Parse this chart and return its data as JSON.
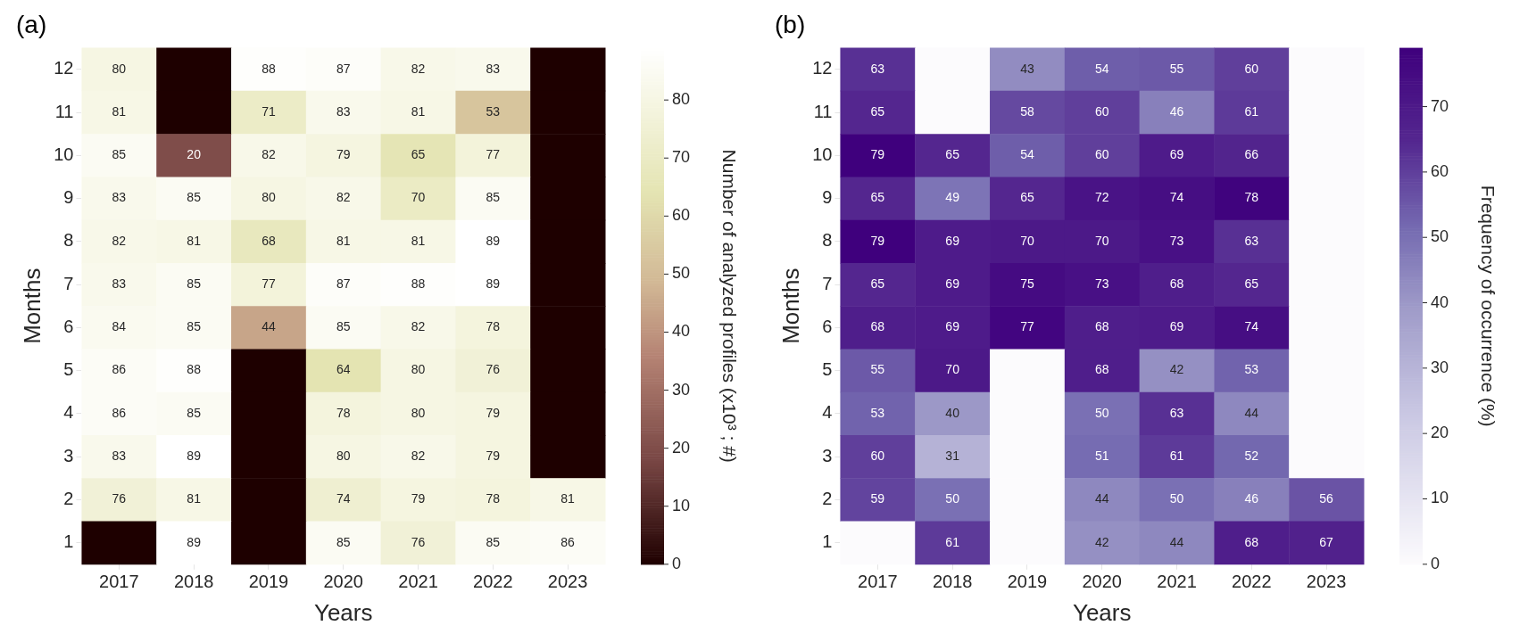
{
  "chart_data": [
    {
      "type": "heatmap",
      "title": "(a)",
      "xlabel": "Years",
      "ylabel": "Months",
      "clabel": "Number of analyzed profiles (x10³ ; #)",
      "categories": [
        "2017",
        "2018",
        "2019",
        "2020",
        "2021",
        "2022",
        "2023"
      ],
      "y_categories": [
        "12",
        "11",
        "10",
        "9",
        "8",
        "7",
        "6",
        "5",
        "4",
        "3",
        "2",
        "1"
      ],
      "cells": [
        [
          80,
          0,
          88,
          87,
          82,
          83,
          0
        ],
        [
          81,
          0,
          71,
          83,
          81,
          53,
          0
        ],
        [
          85,
          20,
          82,
          79,
          65,
          77,
          0
        ],
        [
          83,
          85,
          80,
          82,
          70,
          85,
          0
        ],
        [
          82,
          81,
          68,
          81,
          81,
          89,
          0
        ],
        [
          83,
          85,
          77,
          87,
          88,
          89,
          0
        ],
        [
          84,
          85,
          44,
          85,
          82,
          78,
          0
        ],
        [
          86,
          88,
          0,
          64,
          80,
          76,
          0
        ],
        [
          86,
          85,
          0,
          78,
          80,
          79,
          0
        ],
        [
          83,
          89,
          0,
          80,
          82,
          79,
          0
        ],
        [
          76,
          81,
          0,
          74,
          79,
          78,
          81
        ],
        [
          0,
          89,
          0,
          85,
          76,
          85,
          86
        ]
      ],
      "cell_labels": [
        [
          "80",
          null,
          "88",
          "87",
          "82",
          "83",
          null
        ],
        [
          "81",
          null,
          "71",
          "83",
          "81",
          "53",
          null
        ],
        [
          "85",
          "20",
          "82",
          "79",
          "65",
          "77",
          null
        ],
        [
          "83",
          "85",
          "80",
          "82",
          "70",
          "85",
          null
        ],
        [
          "82",
          "81",
          "68",
          "81",
          "81",
          "89",
          null
        ],
        [
          "83",
          "85",
          "77",
          "87",
          "88",
          "89",
          null
        ],
        [
          "84",
          "85",
          "44",
          "85",
          "82",
          "78",
          null
        ],
        [
          "86",
          "88",
          null,
          "64",
          "80",
          "76",
          null
        ],
        [
          "86",
          "85",
          null,
          "78",
          "80",
          "79",
          null
        ],
        [
          "83",
          "89",
          null,
          "80",
          "82",
          "79",
          null
        ],
        [
          "76",
          "81",
          null,
          "74",
          "79",
          "78",
          "81"
        ],
        [
          null,
          "89",
          null,
          "85",
          "76",
          "85",
          "86"
        ]
      ],
      "clim": [
        0,
        89
      ],
      "cticks": [
        0,
        10,
        20,
        30,
        40,
        50,
        60,
        70,
        80
      ]
    },
    {
      "type": "heatmap",
      "title": "(b)",
      "xlabel": "Years",
      "ylabel": "Months",
      "clabel": "Frequency of occurrence (%)",
      "categories": [
        "2017",
        "2018",
        "2019",
        "2020",
        "2021",
        "2022",
        "2023"
      ],
      "y_categories": [
        "12",
        "11",
        "10",
        "9",
        "8",
        "7",
        "6",
        "5",
        "4",
        "3",
        "2",
        "1"
      ],
      "cells": [
        [
          63,
          0,
          43,
          54,
          55,
          60,
          0
        ],
        [
          65,
          0,
          58,
          60,
          46,
          61,
          0
        ],
        [
          79,
          65,
          54,
          60,
          69,
          66,
          0
        ],
        [
          65,
          49,
          65,
          72,
          74,
          78,
          0
        ],
        [
          79,
          69,
          70,
          70,
          73,
          63,
          0
        ],
        [
          65,
          69,
          75,
          73,
          68,
          65,
          0
        ],
        [
          68,
          69,
          77,
          68,
          69,
          74,
          0
        ],
        [
          55,
          70,
          0,
          68,
          42,
          53,
          0
        ],
        [
          53,
          40,
          0,
          50,
          63,
          44,
          0
        ],
        [
          60,
          31,
          0,
          51,
          61,
          52,
          0
        ],
        [
          59,
          50,
          0,
          44,
          50,
          46,
          56
        ],
        [
          0,
          61,
          0,
          42,
          44,
          68,
          67
        ]
      ],
      "cell_labels": [
        [
          "63",
          null,
          "43",
          "54",
          "55",
          "60",
          null
        ],
        [
          "65",
          null,
          "58",
          "60",
          "46",
          "61",
          null
        ],
        [
          "79",
          "65",
          "54",
          "60",
          "69",
          "66",
          null
        ],
        [
          "65",
          "49",
          "65",
          "72",
          "74",
          "78",
          null
        ],
        [
          "79",
          "69",
          "70",
          "70",
          "73",
          "63",
          null
        ],
        [
          "65",
          "69",
          "75",
          "73",
          "68",
          "65",
          null
        ],
        [
          "68",
          "69",
          "77",
          "68",
          "69",
          "74",
          null
        ],
        [
          "55",
          "70",
          null,
          "68",
          "42",
          "53",
          null
        ],
        [
          "53",
          "40",
          null,
          "50",
          "63",
          "44",
          null
        ],
        [
          "60",
          "31",
          null,
          "51",
          "61",
          "52",
          null
        ],
        [
          "59",
          "50",
          null,
          "44",
          "50",
          "46",
          "56"
        ],
        [
          null,
          "61",
          null,
          "42",
          "44",
          "68",
          "67"
        ]
      ],
      "clim": [
        0,
        79
      ],
      "cticks": [
        0,
        10,
        20,
        30,
        40,
        50,
        60,
        70
      ]
    }
  ]
}
